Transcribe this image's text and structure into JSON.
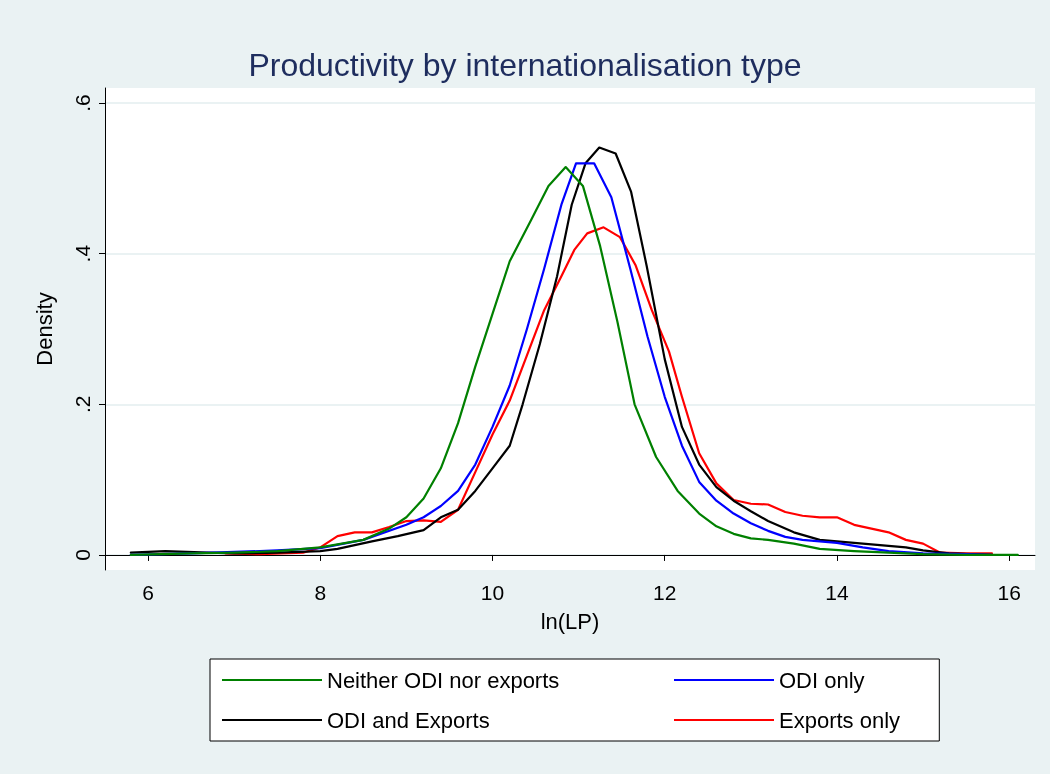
{
  "chart_data": {
    "type": "line",
    "title": "Productivity by internationalisation type",
    "xlabel": "ln(LP)",
    "ylabel": "Density",
    "xlim": [
      5.5,
      16.3
    ],
    "xticks": [
      6,
      8,
      10,
      12,
      14,
      16
    ],
    "ylim": [
      -0.02,
      0.62
    ],
    "yticks": [
      0,
      {
        "value": 0.2,
        "label": ".2"
      },
      {
        "value": 0.4,
        "label": ".4"
      },
      {
        "value": 0.6,
        "label": ".6"
      }
    ],
    "grid": "y",
    "legend": "bottom",
    "marker": "none",
    "line_style": "solid",
    "series": [
      {
        "name": "Neither ODI nor exports",
        "color": "#008000",
        "x": [
          5.8,
          6.5,
          7,
          7.5,
          8,
          8.5,
          8.8,
          9,
          9.2,
          9.4,
          9.6,
          9.8,
          10,
          10.2,
          10.45,
          10.65,
          10.85,
          11.05,
          11.25,
          11.45,
          11.65,
          11.9,
          12.15,
          12.4,
          12.6,
          12.8,
          13,
          13.2,
          13.5,
          13.8,
          14.2,
          14.6,
          15,
          15.5,
          16.1
        ],
        "values": [
          0,
          0.002,
          0.003,
          0.005,
          0.01,
          0.02,
          0.035,
          0.05,
          0.075,
          0.115,
          0.175,
          0.25,
          0.32,
          0.39,
          0.445,
          0.49,
          0.515,
          0.49,
          0.41,
          0.31,
          0.2,
          0.13,
          0.085,
          0.055,
          0.038,
          0.028,
          0.022,
          0.02,
          0.015,
          0.008,
          0.005,
          0.003,
          0.001,
          0,
          0
        ]
      },
      {
        "name": "ODI only",
        "color": "#0000ff",
        "x": [
          5.8,
          6.5,
          7.5,
          8,
          8.5,
          9,
          9.2,
          9.4,
          9.6,
          9.8,
          10,
          10.2,
          10.4,
          10.6,
          10.8,
          10.97,
          11.18,
          11.38,
          11.6,
          11.8,
          12,
          12.2,
          12.4,
          12.6,
          12.8,
          13,
          13.2,
          13.4,
          13.6,
          13.8,
          14,
          14.3,
          14.6,
          15,
          15.5,
          15.8
        ],
        "values": [
          0,
          0.002,
          0.006,
          0.009,
          0.02,
          0.04,
          0.05,
          0.065,
          0.085,
          0.12,
          0.17,
          0.225,
          0.3,
          0.38,
          0.465,
          0.52,
          0.52,
          0.475,
          0.38,
          0.29,
          0.21,
          0.145,
          0.097,
          0.072,
          0.055,
          0.042,
          0.032,
          0.024,
          0.02,
          0.018,
          0.016,
          0.01,
          0.005,
          0.002,
          0.001,
          0
        ]
      },
      {
        "name": "ODI and Exports",
        "color": "#000000",
        "x": [
          5.8,
          6.2,
          6.7,
          7,
          7.5,
          8,
          8.2,
          8.6,
          8.9,
          9.2,
          9.4,
          9.6,
          9.8,
          10,
          10.2,
          10.35,
          10.55,
          10.75,
          10.92,
          11.08,
          11.24,
          11.43,
          11.61,
          11.79,
          12,
          12.2,
          12.4,
          12.6,
          12.8,
          13,
          13.2,
          13.5,
          13.8,
          14.2,
          14.5,
          14.8,
          15,
          15.3,
          15.8
        ],
        "values": [
          0.003,
          0.005,
          0.003,
          0.002,
          0.003,
          0.005,
          0.008,
          0.018,
          0.025,
          0.033,
          0.05,
          0.06,
          0.085,
          0.115,
          0.145,
          0.2,
          0.28,
          0.37,
          0.465,
          0.52,
          0.541,
          0.533,
          0.482,
          0.384,
          0.26,
          0.17,
          0.12,
          0.09,
          0.072,
          0.058,
          0.045,
          0.03,
          0.02,
          0.016,
          0.013,
          0.01,
          0.006,
          0.002,
          0
        ]
      },
      {
        "name": "Exports only",
        "color": "#ff0000",
        "x": [
          6.9,
          7.3,
          7.8,
          8,
          8.2,
          8.4,
          8.6,
          8.8,
          9,
          9.2,
          9.4,
          9.6,
          9.8,
          10,
          10.2,
          10.4,
          10.6,
          10.8,
          10.95,
          11.1,
          11.29,
          11.48,
          11.66,
          11.85,
          12.05,
          12.2,
          12.4,
          12.6,
          12.8,
          13,
          13.2,
          13.4,
          13.6,
          13.8,
          14,
          14.2,
          14.4,
          14.6,
          14.8,
          15,
          15.2,
          15.5,
          15.8
        ],
        "values": [
          0.002,
          0.001,
          0.003,
          0.01,
          0.025,
          0.03,
          0.03,
          0.037,
          0.045,
          0.046,
          0.044,
          0.06,
          0.11,
          0.16,
          0.205,
          0.265,
          0.325,
          0.37,
          0.405,
          0.427,
          0.435,
          0.422,
          0.385,
          0.325,
          0.27,
          0.21,
          0.135,
          0.095,
          0.073,
          0.068,
          0.067,
          0.057,
          0.052,
          0.05,
          0.05,
          0.04,
          0.035,
          0.03,
          0.02,
          0.015,
          0.003,
          0.002,
          0.002
        ]
      }
    ]
  }
}
